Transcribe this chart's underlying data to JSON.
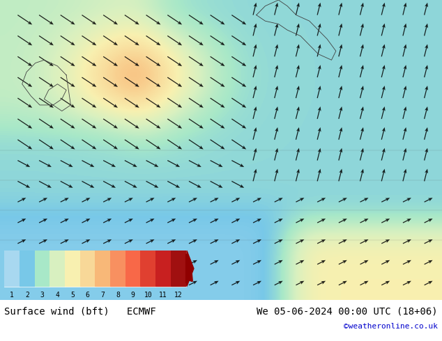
{
  "title_left": "Surface wind (bft)   ECMWF",
  "title_right": "We 05-06-2024 00:00 UTC (18+06)",
  "credit": "©weatheronline.co.uk",
  "colorbar_levels": [
    1,
    2,
    3,
    4,
    5,
    6,
    7,
    8,
    9,
    10,
    11,
    12
  ],
  "colorbar_colors": [
    "#a8d8f0",
    "#78c8e8",
    "#a8e8c8",
    "#d8f0c0",
    "#f8f0b0",
    "#f8d898",
    "#f8b878",
    "#f89060",
    "#f86848",
    "#e04030",
    "#c82020",
    "#a01010"
  ],
  "bg_color": "#ffffff",
  "map_bg": "#b8e8f8",
  "label_color": "#000000",
  "credit_color": "#0000cc",
  "title_fontsize": 10,
  "credit_fontsize": 8,
  "tick_fontsize": 8,
  "colorbar_arrow_color": "#900000",
  "figsize": [
    6.34,
    4.9
  ],
  "dpi": 100
}
